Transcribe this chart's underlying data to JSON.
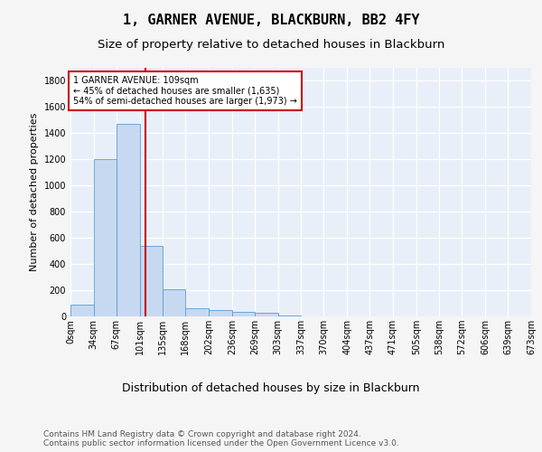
{
  "title": "1, GARNER AVENUE, BLACKBURN, BB2 4FY",
  "subtitle": "Size of property relative to detached houses in Blackburn",
  "xlabel": "Distribution of detached houses by size in Blackburn",
  "ylabel": "Number of detached properties",
  "bar_values": [
    90,
    1200,
    1475,
    540,
    205,
    65,
    45,
    32,
    27,
    10,
    0,
    0,
    0,
    0,
    0,
    0,
    0,
    0,
    0,
    0
  ],
  "tick_labels": [
    "0sqm",
    "34sqm",
    "67sqm",
    "101sqm",
    "135sqm",
    "168sqm",
    "202sqm",
    "236sqm",
    "269sqm",
    "303sqm",
    "337sqm",
    "370sqm",
    "404sqm",
    "437sqm",
    "471sqm",
    "505sqm",
    "538sqm",
    "572sqm",
    "606sqm",
    "639sqm",
    "673sqm"
  ],
  "bar_color": "#c6d9f0",
  "bar_edge_color": "#5b9bd5",
  "property_line_x": 109,
  "property_line_color": "#cc0000",
  "annotation_text": "1 GARNER AVENUE: 109sqm\n← 45% of detached houses are smaller (1,635)\n54% of semi-detached houses are larger (1,973) →",
  "annotation_box_facecolor": "#ffffff",
  "annotation_box_edgecolor": "#cc0000",
  "ylim": [
    0,
    1900
  ],
  "bin_edges": [
    0,
    34,
    67,
    101,
    135,
    168,
    202,
    236,
    269,
    303,
    337,
    370,
    404,
    437,
    471,
    505,
    538,
    572,
    606,
    639,
    673
  ],
  "footer_text": "Contains HM Land Registry data © Crown copyright and database right 2024.\nContains public sector information licensed under the Open Government Licence v3.0.",
  "fig_facecolor": "#f5f5f5",
  "plot_facecolor": "#e8eff8",
  "grid_color": "#ffffff",
  "title_fontsize": 11,
  "subtitle_fontsize": 9.5,
  "ylabel_fontsize": 8,
  "xlabel_fontsize": 9,
  "tick_fontsize": 7,
  "annotation_fontsize": 7,
  "footer_fontsize": 6.5
}
